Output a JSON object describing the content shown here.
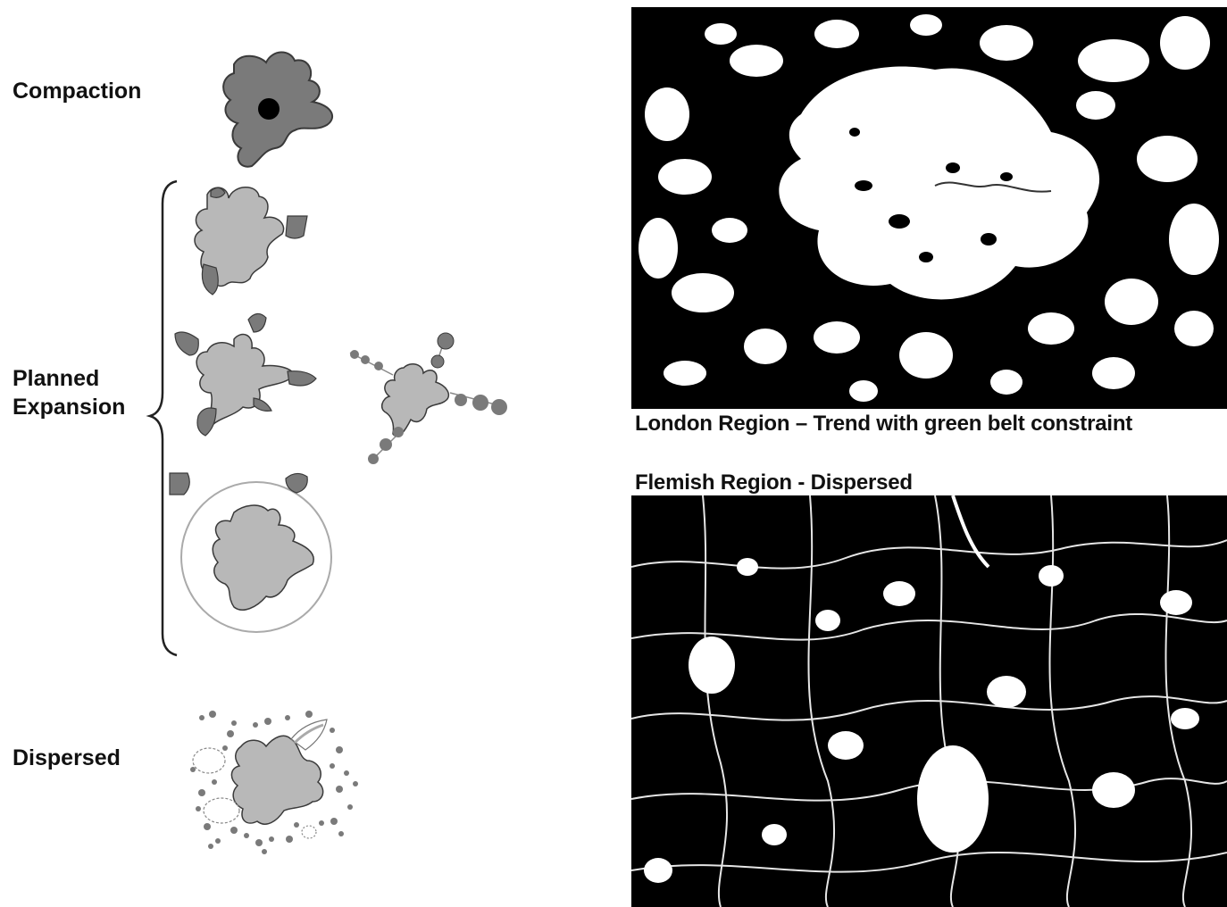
{
  "labels": {
    "compaction": "Compaction",
    "planned_line1": "Planned",
    "planned_line2": "Expansion",
    "dispersed": "Dispersed"
  },
  "maps": {
    "london_caption": "London Region –  Trend with green belt constraint",
    "flemish_caption": "Flemish Region - Dispersed"
  },
  "colors": {
    "dark_grey": "#7a7a7a",
    "light_grey": "#b8b8b8",
    "outline": "#3a3a3a",
    "map_background": "#000000",
    "urban": "#ffffff"
  }
}
